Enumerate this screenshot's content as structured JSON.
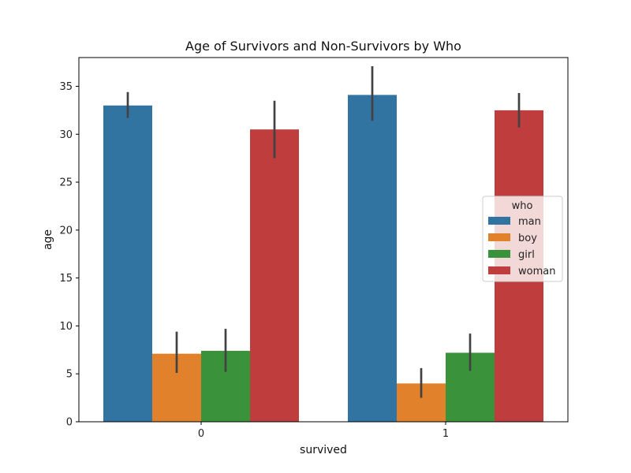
{
  "chart_data": {
    "type": "bar",
    "title": "Age of Survivors and Non-Survivors by Who",
    "xlabel": "survived",
    "ylabel": "age",
    "categories": [
      "0",
      "1"
    ],
    "ylim": [
      0,
      38
    ],
    "yticks": [
      0,
      5,
      10,
      15,
      20,
      25,
      30,
      35
    ],
    "grid": false,
    "legend": {
      "title": "who",
      "placement": "right"
    },
    "series": [
      {
        "name": "man",
        "color": "#3274a1",
        "values": [
          33.0,
          34.1
        ],
        "ci_low": [
          31.7,
          31.4
        ],
        "ci_high": [
          34.4,
          37.1
        ]
      },
      {
        "name": "boy",
        "color": "#e1812c",
        "values": [
          7.1,
          4.0
        ],
        "ci_low": [
          5.1,
          2.5
        ],
        "ci_high": [
          9.4,
          5.6
        ]
      },
      {
        "name": "girl",
        "color": "#3a923a",
        "values": [
          7.4,
          7.2
        ],
        "ci_low": [
          5.2,
          5.3
        ],
        "ci_high": [
          9.7,
          9.2
        ]
      },
      {
        "name": "woman",
        "color": "#c03d3e",
        "values": [
          30.5,
          32.5
        ],
        "ci_low": [
          27.5,
          30.7
        ],
        "ci_high": [
          33.5,
          34.3
        ]
      }
    ]
  }
}
